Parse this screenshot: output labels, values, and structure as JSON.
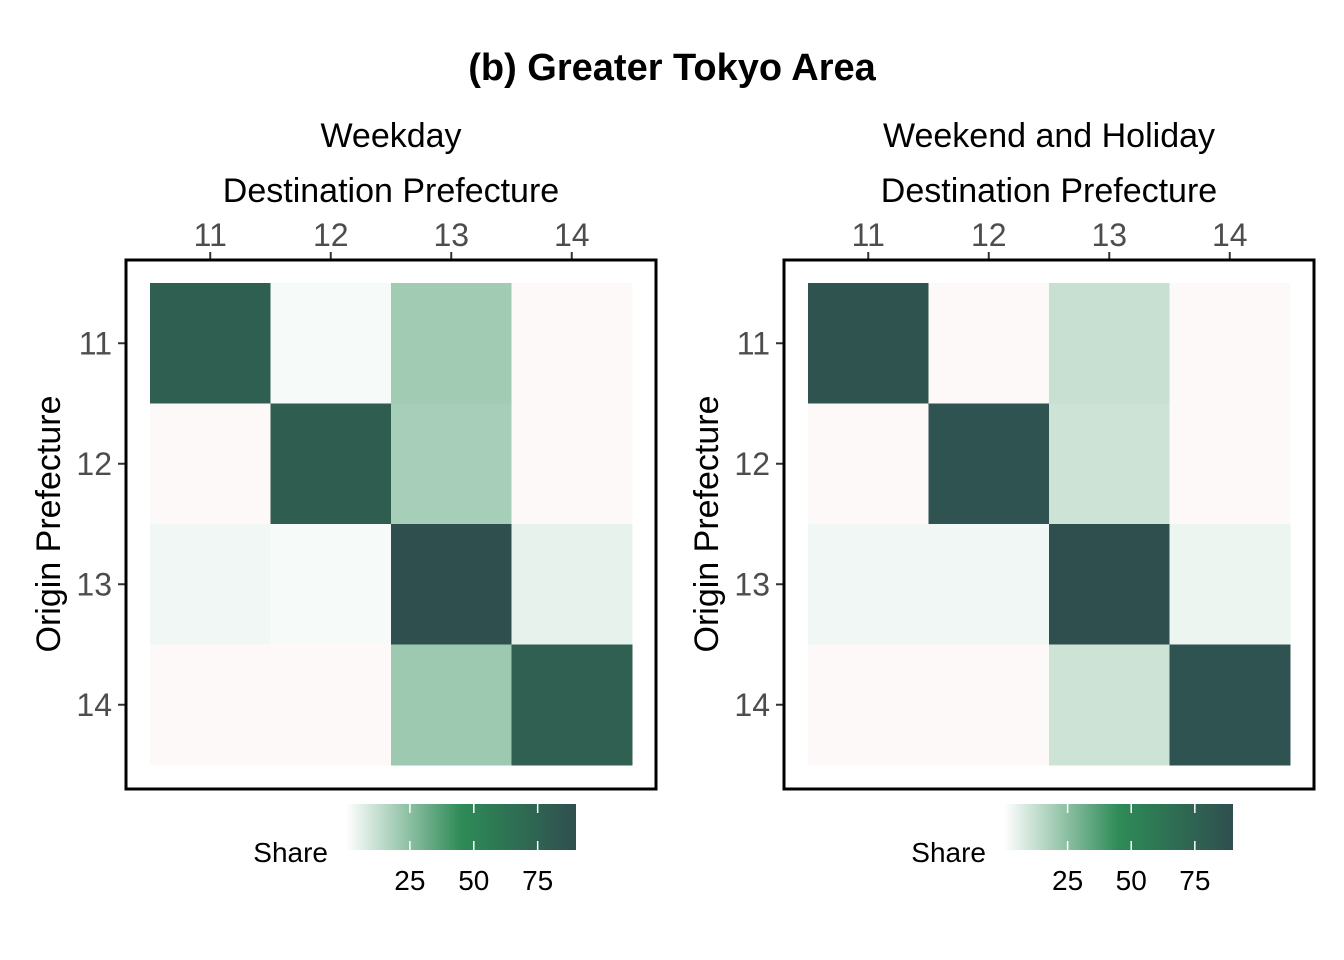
{
  "title": "(b) Greater Tokyo Area",
  "colors": {
    "scale_stops": [
      "#ffffff",
      "#2e8b57",
      "#2f4f4f"
    ],
    "low": "#fdf9f8"
  },
  "chart_data": [
    {
      "type": "heatmap",
      "panel_title": "Weekday",
      "xlabel": "Destination Prefecture",
      "ylabel": "Origin Prefecture",
      "x_categories": [
        "11",
        "12",
        "13",
        "14"
      ],
      "y_categories": [
        "11",
        "12",
        "13",
        "14"
      ],
      "values": [
        [
          78,
          2,
          20,
          1
        ],
        [
          1,
          79,
          19,
          1
        ],
        [
          3,
          2,
          90,
          5
        ],
        [
          1,
          1,
          21,
          77
        ]
      ],
      "legend": {
        "title": "Share",
        "ticks": [
          25,
          50,
          75
        ],
        "range": [
          0,
          90
        ],
        "position": "bottom"
      }
    },
    {
      "type": "heatmap",
      "panel_title": "Weekend and Holiday",
      "xlabel": "Destination Prefecture",
      "ylabel": "Origin Prefecture",
      "x_categories": [
        "11",
        "12",
        "13",
        "14"
      ],
      "y_categories": [
        "11",
        "12",
        "13",
        "14"
      ],
      "values": [
        [
          86,
          1,
          12,
          1
        ],
        [
          1,
          87,
          11,
          1
        ],
        [
          3,
          3,
          90,
          4
        ],
        [
          1,
          1,
          11,
          87
        ]
      ],
      "legend": {
        "title": "Share",
        "ticks": [
          25,
          50,
          75
        ],
        "range": [
          0,
          90
        ],
        "position": "bottom"
      }
    }
  ]
}
